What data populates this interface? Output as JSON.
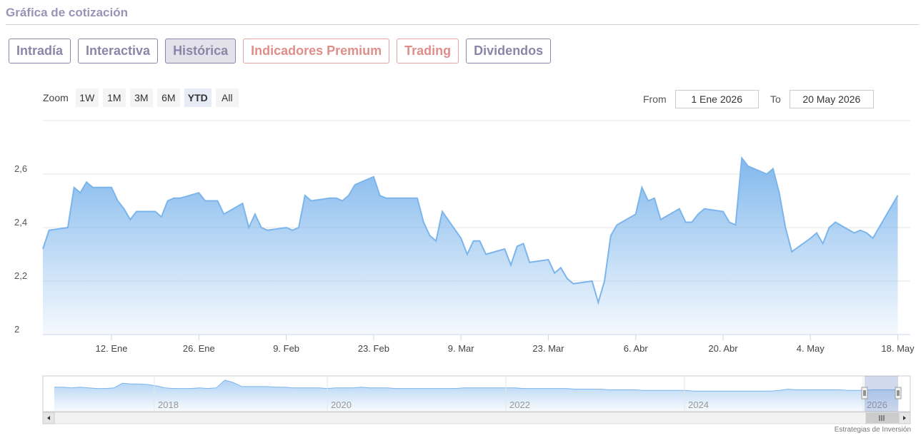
{
  "header": {
    "title": "Gráfica de cotización"
  },
  "tabs": [
    {
      "label": "Intradía",
      "active": false,
      "premium": false
    },
    {
      "label": "Interactiva",
      "active": false,
      "premium": false
    },
    {
      "label": "Histórica",
      "active": true,
      "premium": false
    },
    {
      "label": "Indicadores Premium",
      "active": false,
      "premium": true
    },
    {
      "label": "Trading",
      "active": false,
      "premium": true
    },
    {
      "label": "Dividendos",
      "active": false,
      "premium": false
    }
  ],
  "zoom": {
    "label": "Zoom",
    "buttons": [
      "1W",
      "1M",
      "3M",
      "6M",
      "YTD",
      "All"
    ],
    "selected": "YTD"
  },
  "range": {
    "from_label": "From",
    "from_value": "1 Ene 2026",
    "to_label": "To",
    "to_value": "20 May 2026"
  },
  "credit": "Estrategias de Inversión",
  "colors": {
    "line": "#7cb5ec",
    "accent": "#8b85a8",
    "premium": "#e08e8a"
  },
  "chart_data": {
    "type": "area",
    "x_start": "2026-01-01",
    "x_end": "2026-05-20",
    "ylim": [
      2.0,
      2.6
    ],
    "yticks": [
      {
        "value": 2.0,
        "label": "2"
      },
      {
        "value": 2.2,
        "label": "2,2"
      },
      {
        "value": 2.4,
        "label": "2,4"
      },
      {
        "value": 2.6,
        "label": "2,6"
      }
    ],
    "xticks": [
      {
        "date": "2026-01-12",
        "label": "12. Ene"
      },
      {
        "date": "2026-01-26",
        "label": "26. Ene"
      },
      {
        "date": "2026-02-09",
        "label": "9. Feb"
      },
      {
        "date": "2026-02-23",
        "label": "23. Feb"
      },
      {
        "date": "2026-03-09",
        "label": "9. Mar"
      },
      {
        "date": "2026-03-23",
        "label": "23. Mar"
      },
      {
        "date": "2026-04-06",
        "label": "6. Abr"
      },
      {
        "date": "2026-04-20",
        "label": "20. Abr"
      },
      {
        "date": "2026-05-04",
        "label": "4. May"
      },
      {
        "date": "2026-05-18",
        "label": "18. May"
      }
    ],
    "grid": true,
    "legend": "none",
    "series": [
      {
        "points": [
          [
            "2026-01-01",
            2.32
          ],
          [
            "2026-01-02",
            2.39
          ],
          [
            "2026-01-05",
            2.4
          ],
          [
            "2026-01-06",
            2.55
          ],
          [
            "2026-01-07",
            2.53
          ],
          [
            "2026-01-08",
            2.57
          ],
          [
            "2026-01-09",
            2.55
          ],
          [
            "2026-01-12",
            2.55
          ],
          [
            "2026-01-13",
            2.5
          ],
          [
            "2026-01-14",
            2.47
          ],
          [
            "2026-01-15",
            2.43
          ],
          [
            "2026-01-16",
            2.46
          ],
          [
            "2026-01-19",
            2.46
          ],
          [
            "2026-01-20",
            2.44
          ],
          [
            "2026-01-21",
            2.5
          ],
          [
            "2026-01-22",
            2.51
          ],
          [
            "2026-01-23",
            2.51
          ],
          [
            "2026-01-26",
            2.53
          ],
          [
            "2026-01-27",
            2.5
          ],
          [
            "2026-01-28",
            2.5
          ],
          [
            "2026-01-29",
            2.5
          ],
          [
            "2026-01-30",
            2.45
          ],
          [
            "2026-02-02",
            2.49
          ],
          [
            "2026-02-03",
            2.4
          ],
          [
            "2026-02-04",
            2.45
          ],
          [
            "2026-02-05",
            2.4
          ],
          [
            "2026-02-06",
            2.39
          ],
          [
            "2026-02-09",
            2.4
          ],
          [
            "2026-02-10",
            2.39
          ],
          [
            "2026-02-11",
            2.4
          ],
          [
            "2026-02-12",
            2.52
          ],
          [
            "2026-02-13",
            2.5
          ],
          [
            "2026-02-16",
            2.51
          ],
          [
            "2026-02-17",
            2.51
          ],
          [
            "2026-02-18",
            2.5
          ],
          [
            "2026-02-19",
            2.52
          ],
          [
            "2026-02-20",
            2.56
          ],
          [
            "2026-02-23",
            2.59
          ],
          [
            "2026-02-24",
            2.52
          ],
          [
            "2026-02-25",
            2.51
          ],
          [
            "2026-02-26",
            2.51
          ],
          [
            "2026-02-27",
            2.51
          ],
          [
            "2026-03-02",
            2.51
          ],
          [
            "2026-03-03",
            2.42
          ],
          [
            "2026-03-04",
            2.37
          ],
          [
            "2026-03-05",
            2.35
          ],
          [
            "2026-03-06",
            2.46
          ],
          [
            "2026-03-09",
            2.36
          ],
          [
            "2026-03-10",
            2.3
          ],
          [
            "2026-03-11",
            2.35
          ],
          [
            "2026-03-12",
            2.35
          ],
          [
            "2026-03-13",
            2.3
          ],
          [
            "2026-03-16",
            2.32
          ],
          [
            "2026-03-17",
            2.26
          ],
          [
            "2026-03-18",
            2.33
          ],
          [
            "2026-03-19",
            2.34
          ],
          [
            "2026-03-20",
            2.27
          ],
          [
            "2026-03-23",
            2.28
          ],
          [
            "2026-03-24",
            2.23
          ],
          [
            "2026-03-25",
            2.25
          ],
          [
            "2026-03-26",
            2.21
          ],
          [
            "2026-03-27",
            2.19
          ],
          [
            "2026-03-30",
            2.2
          ],
          [
            "2026-03-31",
            2.12
          ],
          [
            "2026-04-01",
            2.2
          ],
          [
            "2026-04-02",
            2.37
          ],
          [
            "2026-04-03",
            2.41
          ],
          [
            "2026-04-06",
            2.45
          ],
          [
            "2026-04-07",
            2.55
          ],
          [
            "2026-04-08",
            2.5
          ],
          [
            "2026-04-09",
            2.51
          ],
          [
            "2026-04-10",
            2.43
          ],
          [
            "2026-04-13",
            2.47
          ],
          [
            "2026-04-14",
            2.42
          ],
          [
            "2026-04-15",
            2.42
          ],
          [
            "2026-04-16",
            2.45
          ],
          [
            "2026-04-17",
            2.47
          ],
          [
            "2026-04-20",
            2.46
          ],
          [
            "2026-04-21",
            2.42
          ],
          [
            "2026-04-22",
            2.41
          ],
          [
            "2026-04-23",
            2.66
          ],
          [
            "2026-04-24",
            2.63
          ],
          [
            "2026-04-27",
            2.6
          ],
          [
            "2026-04-28",
            2.62
          ],
          [
            "2026-04-29",
            2.53
          ],
          [
            "2026-04-30",
            2.4
          ],
          [
            "2026-05-01",
            2.31
          ],
          [
            "2026-05-04",
            2.36
          ],
          [
            "2026-05-05",
            2.38
          ],
          [
            "2026-05-06",
            2.34
          ],
          [
            "2026-05-07",
            2.4
          ],
          [
            "2026-05-08",
            2.42
          ],
          [
            "2026-05-11",
            2.38
          ],
          [
            "2026-05-12",
            2.39
          ],
          [
            "2026-05-13",
            2.38
          ],
          [
            "2026-05-14",
            2.36
          ],
          [
            "2026-05-15",
            2.4
          ],
          [
            "2026-05-18",
            2.52
          ]
        ]
      }
    ],
    "navigator": {
      "xlabels": [
        "2018",
        "2020",
        "2022",
        "2024",
        "2026"
      ],
      "values": [
        2.9,
        2.9,
        2.8,
        2.9,
        2.8,
        2.7,
        2.7,
        2.8,
        3.5,
        3.4,
        3.4,
        3.3,
        3.1,
        2.8,
        2.7,
        2.7,
        2.7,
        2.8,
        2.7,
        2.8,
        4.0,
        3.6,
        3.0,
        3.0,
        3.0,
        3.0,
        2.9,
        2.9,
        2.8,
        2.8,
        2.8,
        2.8,
        2.7,
        2.8,
        2.8,
        2.8,
        2.9,
        2.8,
        2.8,
        2.8,
        2.7,
        2.7,
        2.7,
        2.7,
        2.7,
        2.7,
        2.7,
        2.7,
        2.8,
        2.8,
        2.8,
        2.8,
        2.8,
        2.8,
        2.8,
        2.7,
        2.7,
        2.7,
        2.7,
        2.7,
        2.7,
        2.6,
        2.6,
        2.6,
        2.6,
        2.5,
        2.5,
        2.5,
        2.5,
        2.4,
        2.4,
        2.4,
        2.4,
        2.4,
        2.4,
        2.3,
        2.3,
        2.3,
        2.3,
        2.3,
        2.3,
        2.3,
        2.3,
        2.3,
        2.3,
        2.4,
        2.6,
        2.5,
        2.5,
        2.5,
        2.5,
        2.5,
        2.5,
        2.4,
        2.4,
        2.4,
        2.5,
        2.5,
        2.5,
        2.5
      ]
    }
  }
}
